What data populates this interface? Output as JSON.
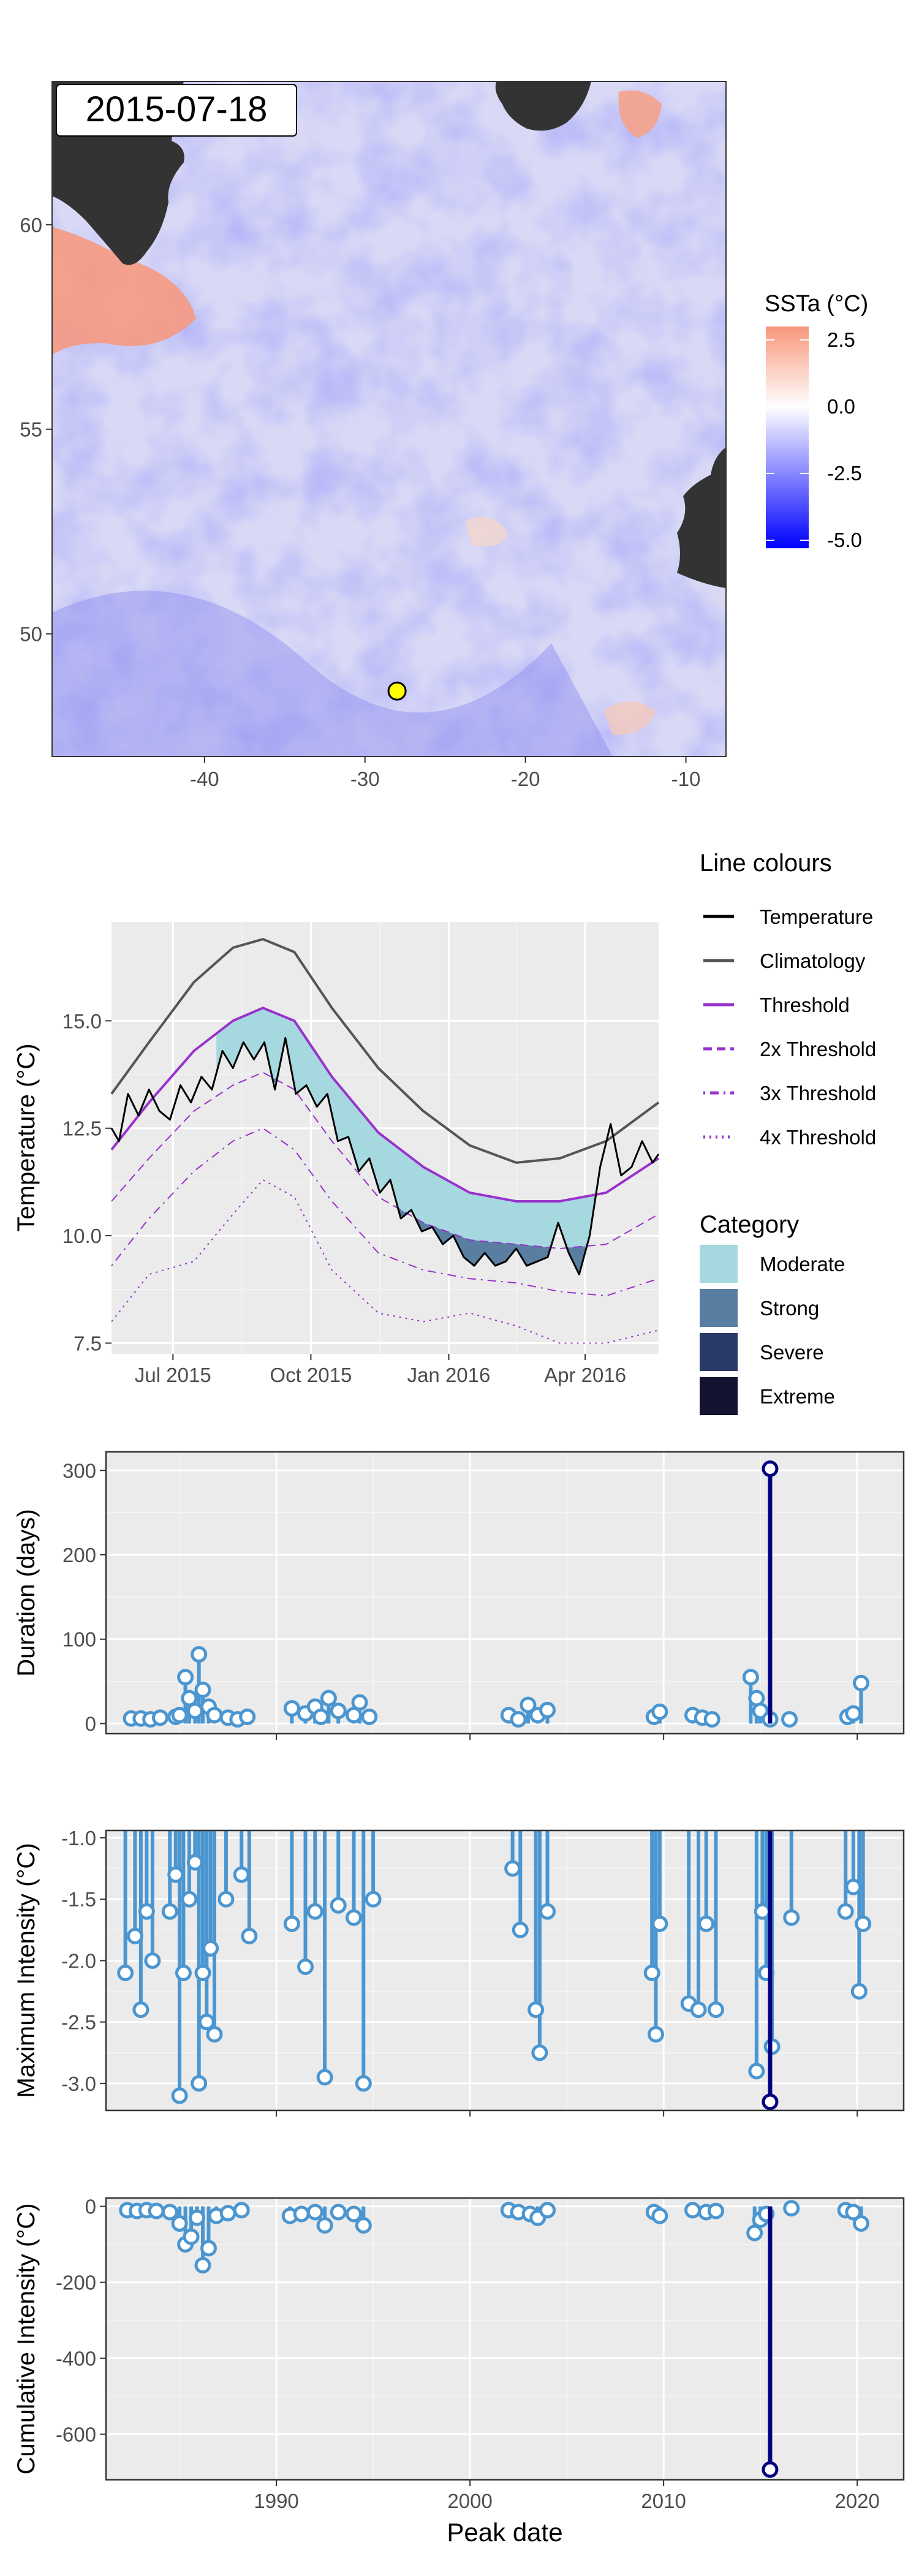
{
  "chart_data": [
    {
      "type": "heatmap",
      "title": "2015-07-18",
      "x_ticks": [
        "-40",
        "-30",
        "-20",
        "-10"
      ],
      "x_tick_values": [
        -40,
        -30,
        -20,
        -10
      ],
      "y_ticks": [
        "50",
        "55",
        "60"
      ],
      "y_tick_values": [
        50,
        55,
        60
      ],
      "xlim": [
        -49.5,
        -7.5
      ],
      "ylim": [
        47,
        63.5
      ],
      "marker": {
        "lon": -28,
        "lat": 48.6,
        "color": "#ffff00"
      },
      "legend": {
        "title": "SSTa (°C)",
        "labels": [
          "2.5",
          "0.0",
          "-2.5",
          "-5.0"
        ],
        "values": [
          2.5,
          0.0,
          -2.5,
          -5.0
        ],
        "range": [
          -5.3,
          3.0
        ],
        "colors": [
          "#0000ff",
          "#ffffff",
          "#f8967a"
        ]
      },
      "colors": {
        "land": "#333333",
        "cold": "#6a6af0",
        "warm": "#f8967a"
      }
    },
    {
      "type": "line",
      "xlabel": "",
      "ylabel": "Temperature (°C)",
      "x_ticks": [
        "Jul 2015",
        "Oct 2015",
        "Jan 2016",
        "Apr 2016"
      ],
      "x_tick_values": [
        "2015-07-01",
        "2015-10-01",
        "2016-01-01",
        "2016-04-01"
      ],
      "y_ticks": [
        "7.5",
        "10.0",
        "12.5",
        "15.0"
      ],
      "y_tick_values": [
        7.5,
        10.0,
        12.5,
        15.0
      ],
      "xlim": [
        "2015-05-21",
        "2016-05-20"
      ],
      "ylim": [
        7.25,
        17.3
      ],
      "grid": true,
      "legend_position": "right",
      "legend_lines_title": "Line colours",
      "legend_lines": [
        {
          "label": "Temperature",
          "color": "#000000",
          "style": "solid"
        },
        {
          "label": "Climatology",
          "color": "#555555",
          "style": "solid"
        },
        {
          "label": "Threshold",
          "color": "#9932cc",
          "style": "solid"
        },
        {
          "label": "2x Threshold",
          "color": "#9932cc",
          "style": "dashed"
        },
        {
          "label": "3x Threshold",
          "color": "#9932cc",
          "style": "dotdash"
        },
        {
          "label": "4x Threshold",
          "color": "#9932cc",
          "style": "dotted"
        }
      ],
      "legend_category_title": "Category",
      "legend_categories": [
        {
          "label": "Moderate",
          "color": "#a6d8e0"
        },
        {
          "label": "Strong",
          "color": "#5a7ea1"
        },
        {
          "label": "Severe",
          "color": "#293a68"
        },
        {
          "label": "Extreme",
          "color": "#11132f"
        }
      ],
      "series": [
        {
          "name": "Climatology",
          "x": [
            "2015-05-21",
            "2015-06-15",
            "2015-07-15",
            "2015-08-10",
            "2015-08-30",
            "2015-09-20",
            "2015-10-15",
            "2015-11-15",
            "2015-12-15",
            "2016-01-15",
            "2016-02-15",
            "2016-03-15",
            "2016-04-15",
            "2016-05-20"
          ],
          "values": [
            13.3,
            14.5,
            15.9,
            16.7,
            16.9,
            16.6,
            15.3,
            13.9,
            12.9,
            12.1,
            11.7,
            11.8,
            12.2,
            13.1
          ]
        },
        {
          "name": "Threshold",
          "x": [
            "2015-05-21",
            "2015-06-15",
            "2015-07-15",
            "2015-08-10",
            "2015-08-30",
            "2015-09-20",
            "2015-10-15",
            "2015-11-15",
            "2015-12-15",
            "2016-01-15",
            "2016-02-15",
            "2016-03-15",
            "2016-04-15",
            "2016-05-20"
          ],
          "values": [
            12.0,
            13.1,
            14.3,
            15.0,
            15.3,
            15.0,
            13.7,
            12.4,
            11.6,
            11.0,
            10.8,
            10.8,
            11.0,
            11.8
          ]
        },
        {
          "name": "2x Threshold",
          "x": [
            "2015-05-21",
            "2015-06-15",
            "2015-07-15",
            "2015-08-10",
            "2015-08-30",
            "2015-09-20",
            "2015-10-15",
            "2015-11-15",
            "2015-12-15",
            "2016-01-15",
            "2016-02-15",
            "2016-03-15",
            "2016-04-15",
            "2016-05-20"
          ],
          "values": [
            10.8,
            11.8,
            12.9,
            13.5,
            13.8,
            13.4,
            12.2,
            10.9,
            10.3,
            9.9,
            9.8,
            9.7,
            9.8,
            10.5
          ]
        },
        {
          "name": "3x Threshold",
          "x": [
            "2015-05-21",
            "2015-06-15",
            "2015-07-15",
            "2015-08-10",
            "2015-08-30",
            "2015-09-20",
            "2015-10-15",
            "2015-11-15",
            "2015-12-15",
            "2016-01-15",
            "2016-02-15",
            "2016-03-15",
            "2016-04-15",
            "2016-05-20"
          ],
          "values": [
            9.3,
            10.4,
            11.5,
            12.2,
            12.5,
            12.0,
            10.8,
            9.6,
            9.2,
            9.0,
            8.9,
            8.7,
            8.6,
            9.0
          ]
        },
        {
          "name": "4x Threshold",
          "x": [
            "2015-05-21",
            "2015-06-15",
            "2015-07-15",
            "2015-08-10",
            "2015-08-30",
            "2015-09-20",
            "2015-10-15",
            "2015-11-15",
            "2015-12-15",
            "2016-01-15",
            "2016-02-15",
            "2016-03-15",
            "2016-04-15",
            "2016-05-20"
          ],
          "values": [
            8.0,
            9.1,
            9.4,
            10.5,
            11.3,
            10.9,
            9.2,
            8.2,
            8.0,
            8.2,
            7.9,
            7.5,
            7.5,
            7.8
          ]
        },
        {
          "name": "Temperature",
          "x": [
            "2015-05-21",
            "2015-05-26",
            "2015-06-01",
            "2015-06-08",
            "2015-06-15",
            "2015-06-22",
            "2015-06-29",
            "2015-07-06",
            "2015-07-13",
            "2015-07-20",
            "2015-07-27",
            "2015-08-03",
            "2015-08-10",
            "2015-08-17",
            "2015-08-24",
            "2015-08-31",
            "2015-09-07",
            "2015-09-14",
            "2015-09-21",
            "2015-09-28",
            "2015-10-05",
            "2015-10-12",
            "2015-10-19",
            "2015-10-26",
            "2015-11-02",
            "2015-11-09",
            "2015-11-16",
            "2015-11-23",
            "2015-11-30",
            "2015-12-07",
            "2015-12-14",
            "2015-12-21",
            "2015-12-28",
            "2016-01-04",
            "2016-01-11",
            "2016-01-18",
            "2016-01-25",
            "2016-02-01",
            "2016-02-08",
            "2016-02-15",
            "2016-02-22",
            "2016-02-29",
            "2016-03-07",
            "2016-03-14",
            "2016-03-21",
            "2016-03-28",
            "2016-04-04",
            "2016-04-11",
            "2016-04-18",
            "2016-04-25",
            "2016-05-02",
            "2016-05-09",
            "2016-05-16",
            "2016-05-20"
          ],
          "values": [
            12.5,
            12.2,
            13.3,
            12.8,
            13.4,
            12.9,
            12.7,
            13.5,
            13.1,
            13.7,
            13.4,
            14.3,
            13.9,
            14.5,
            14.1,
            14.5,
            13.4,
            14.6,
            13.3,
            13.5,
            13.0,
            13.3,
            12.2,
            12.3,
            11.5,
            11.8,
            11.0,
            11.3,
            10.4,
            10.6,
            10.1,
            10.2,
            9.8,
            10.0,
            9.5,
            9.3,
            9.6,
            9.3,
            9.4,
            9.7,
            9.3,
            9.4,
            9.5,
            10.3,
            9.6,
            9.1,
            10.0,
            11.6,
            12.6,
            11.4,
            11.6,
            12.2,
            11.7,
            11.9
          ]
        }
      ]
    },
    {
      "type": "scatter",
      "ylabel": "Duration (days)",
      "x_ticks": [
        "1990",
        "2000",
        "2010",
        "2020"
      ],
      "x_tick_values": [
        1990,
        2000,
        2010,
        2020
      ],
      "y_ticks": [
        "0",
        "100",
        "200",
        "300"
      ],
      "y_tick_values": [
        0,
        100,
        200,
        300
      ],
      "xlim": [
        1981.2,
        2022.4
      ],
      "ylim": [
        -12,
        322
      ],
      "baseline": 0,
      "colors": {
        "events": "#4b96d0",
        "highlight": "#000080"
      },
      "x": [
        1982.5,
        1983.0,
        1983.5,
        1984.0,
        1984.8,
        1985.0,
        1985.3,
        1985.5,
        1985.8,
        1986.0,
        1986.2,
        1986.5,
        1986.8,
        1987.5,
        1988.0,
        1988.5,
        1990.8,
        1991.5,
        1992.0,
        1992.3,
        1992.7,
        1993.2,
        1994.0,
        1994.3,
        1994.8,
        2002.0,
        2002.5,
        2003.0,
        2003.5,
        2004.0,
        2009.5,
        2009.8,
        2011.5,
        2012.0,
        2012.5,
        2014.5,
        2014.8,
        2015.0,
        2015.5,
        2016.5,
        2019.5,
        2019.8,
        2020.2
      ],
      "values": [
        6,
        6,
        5,
        7,
        8,
        10,
        55,
        30,
        15,
        82,
        40,
        20,
        10,
        7,
        5,
        8,
        18,
        12,
        20,
        8,
        30,
        15,
        10,
        25,
        8,
        10,
        5,
        22,
        10,
        16,
        8,
        14,
        10,
        7,
        5,
        55,
        30,
        15,
        5,
        5,
        8,
        12,
        48
      ],
      "highlight": {
        "x": 2015.5,
        "value": 302
      }
    },
    {
      "type": "scatter",
      "ylabel": "Maximum Intensity (°C)",
      "x_ticks": [
        "1990",
        "2000",
        "2010",
        "2020"
      ],
      "x_tick_values": [
        1990,
        2000,
        2010,
        2020
      ],
      "y_ticks": [
        "-1.0",
        "-1.5",
        "-2.0",
        "-2.5",
        "-3.0"
      ],
      "y_tick_values": [
        -1.0,
        -1.5,
        -2.0,
        -2.5,
        -3.0
      ],
      "xlim": [
        1981.2,
        2022.4
      ],
      "ylim": [
        -3.22,
        -0.94
      ],
      "baseline": -0.94,
      "colors": {
        "events": "#4b96d0",
        "highlight": "#000080"
      },
      "x": [
        1982.2,
        1982.7,
        1983.0,
        1983.3,
        1983.6,
        1984.5,
        1984.8,
        1985.0,
        1985.2,
        1985.5,
        1985.8,
        1986.0,
        1986.2,
        1986.4,
        1986.6,
        1986.8,
        1987.4,
        1988.2,
        1988.6,
        1990.8,
        1991.5,
        1992.0,
        1992.5,
        1993.2,
        1994.0,
        1994.5,
        1995.0,
        2002.2,
        2002.6,
        2003.4,
        2003.6,
        2004.0,
        2009.4,
        2009.6,
        2009.8,
        2011.3,
        2011.8,
        2012.2,
        2012.7,
        2014.8,
        2015.1,
        2015.3,
        2015.6,
        2016.6,
        2019.4,
        2019.8,
        2020.1,
        2020.3
      ],
      "values": [
        -2.1,
        -1.8,
        -2.4,
        -1.6,
        -2.0,
        -1.6,
        -1.3,
        -3.1,
        -2.1,
        -1.5,
        -1.2,
        -3.0,
        -2.1,
        -2.5,
        -1.9,
        -2.6,
        -1.5,
        -1.3,
        -1.8,
        -1.7,
        -2.05,
        -1.6,
        -2.95,
        -1.55,
        -1.65,
        -3.0,
        -1.5,
        -1.25,
        -1.75,
        -2.4,
        -2.75,
        -1.6,
        -2.1,
        -2.6,
        -1.7,
        -2.35,
        -2.4,
        -1.7,
        -2.4,
        -2.9,
        -1.6,
        -2.1,
        -2.7,
        -1.65,
        -1.6,
        -1.4,
        -2.25,
        -1.7
      ],
      "highlight": {
        "x": 2015.5,
        "value": -3.15
      }
    },
    {
      "type": "scatter",
      "xlabel": "Peak date",
      "ylabel": "Cumulative Intensity (°C)",
      "x_ticks": [
        "1990",
        "2000",
        "2010",
        "2020"
      ],
      "x_tick_values": [
        1990,
        2000,
        2010,
        2020
      ],
      "y_ticks": [
        "0",
        "-200",
        "-400",
        "-600"
      ],
      "y_tick_values": [
        0,
        -200,
        -400,
        -600
      ],
      "xlim": [
        1981.2,
        2022.4
      ],
      "ylim": [
        -720,
        22
      ],
      "baseline": 0,
      "colors": {
        "events": "#4b96d0",
        "highlight": "#000080"
      },
      "x": [
        1982.3,
        1982.8,
        1983.3,
        1983.8,
        1984.5,
        1985.0,
        1985.3,
        1985.6,
        1985.9,
        1986.2,
        1986.5,
        1986.9,
        1987.5,
        1988.2,
        1990.7,
        1991.3,
        1992.0,
        1992.5,
        1993.2,
        1994.0,
        1994.5,
        2002.0,
        2002.5,
        2003.1,
        2003.5,
        2004.0,
        2009.5,
        2009.8,
        2011.5,
        2012.2,
        2012.7,
        2014.7,
        2015.0,
        2015.3,
        2016.6,
        2019.4,
        2019.8,
        2020.2
      ],
      "values": [
        -10,
        -12,
        -10,
        -12,
        -15,
        -45,
        -100,
        -80,
        -30,
        -155,
        -110,
        -25,
        -18,
        -10,
        -25,
        -20,
        -15,
        -50,
        -15,
        -20,
        -50,
        -10,
        -15,
        -20,
        -30,
        -10,
        -15,
        -25,
        -10,
        -15,
        -12,
        -70,
        -35,
        -20,
        -5,
        -10,
        -15,
        -45
      ],
      "highlight": {
        "x": 2015.5,
        "value": -693
      }
    }
  ]
}
